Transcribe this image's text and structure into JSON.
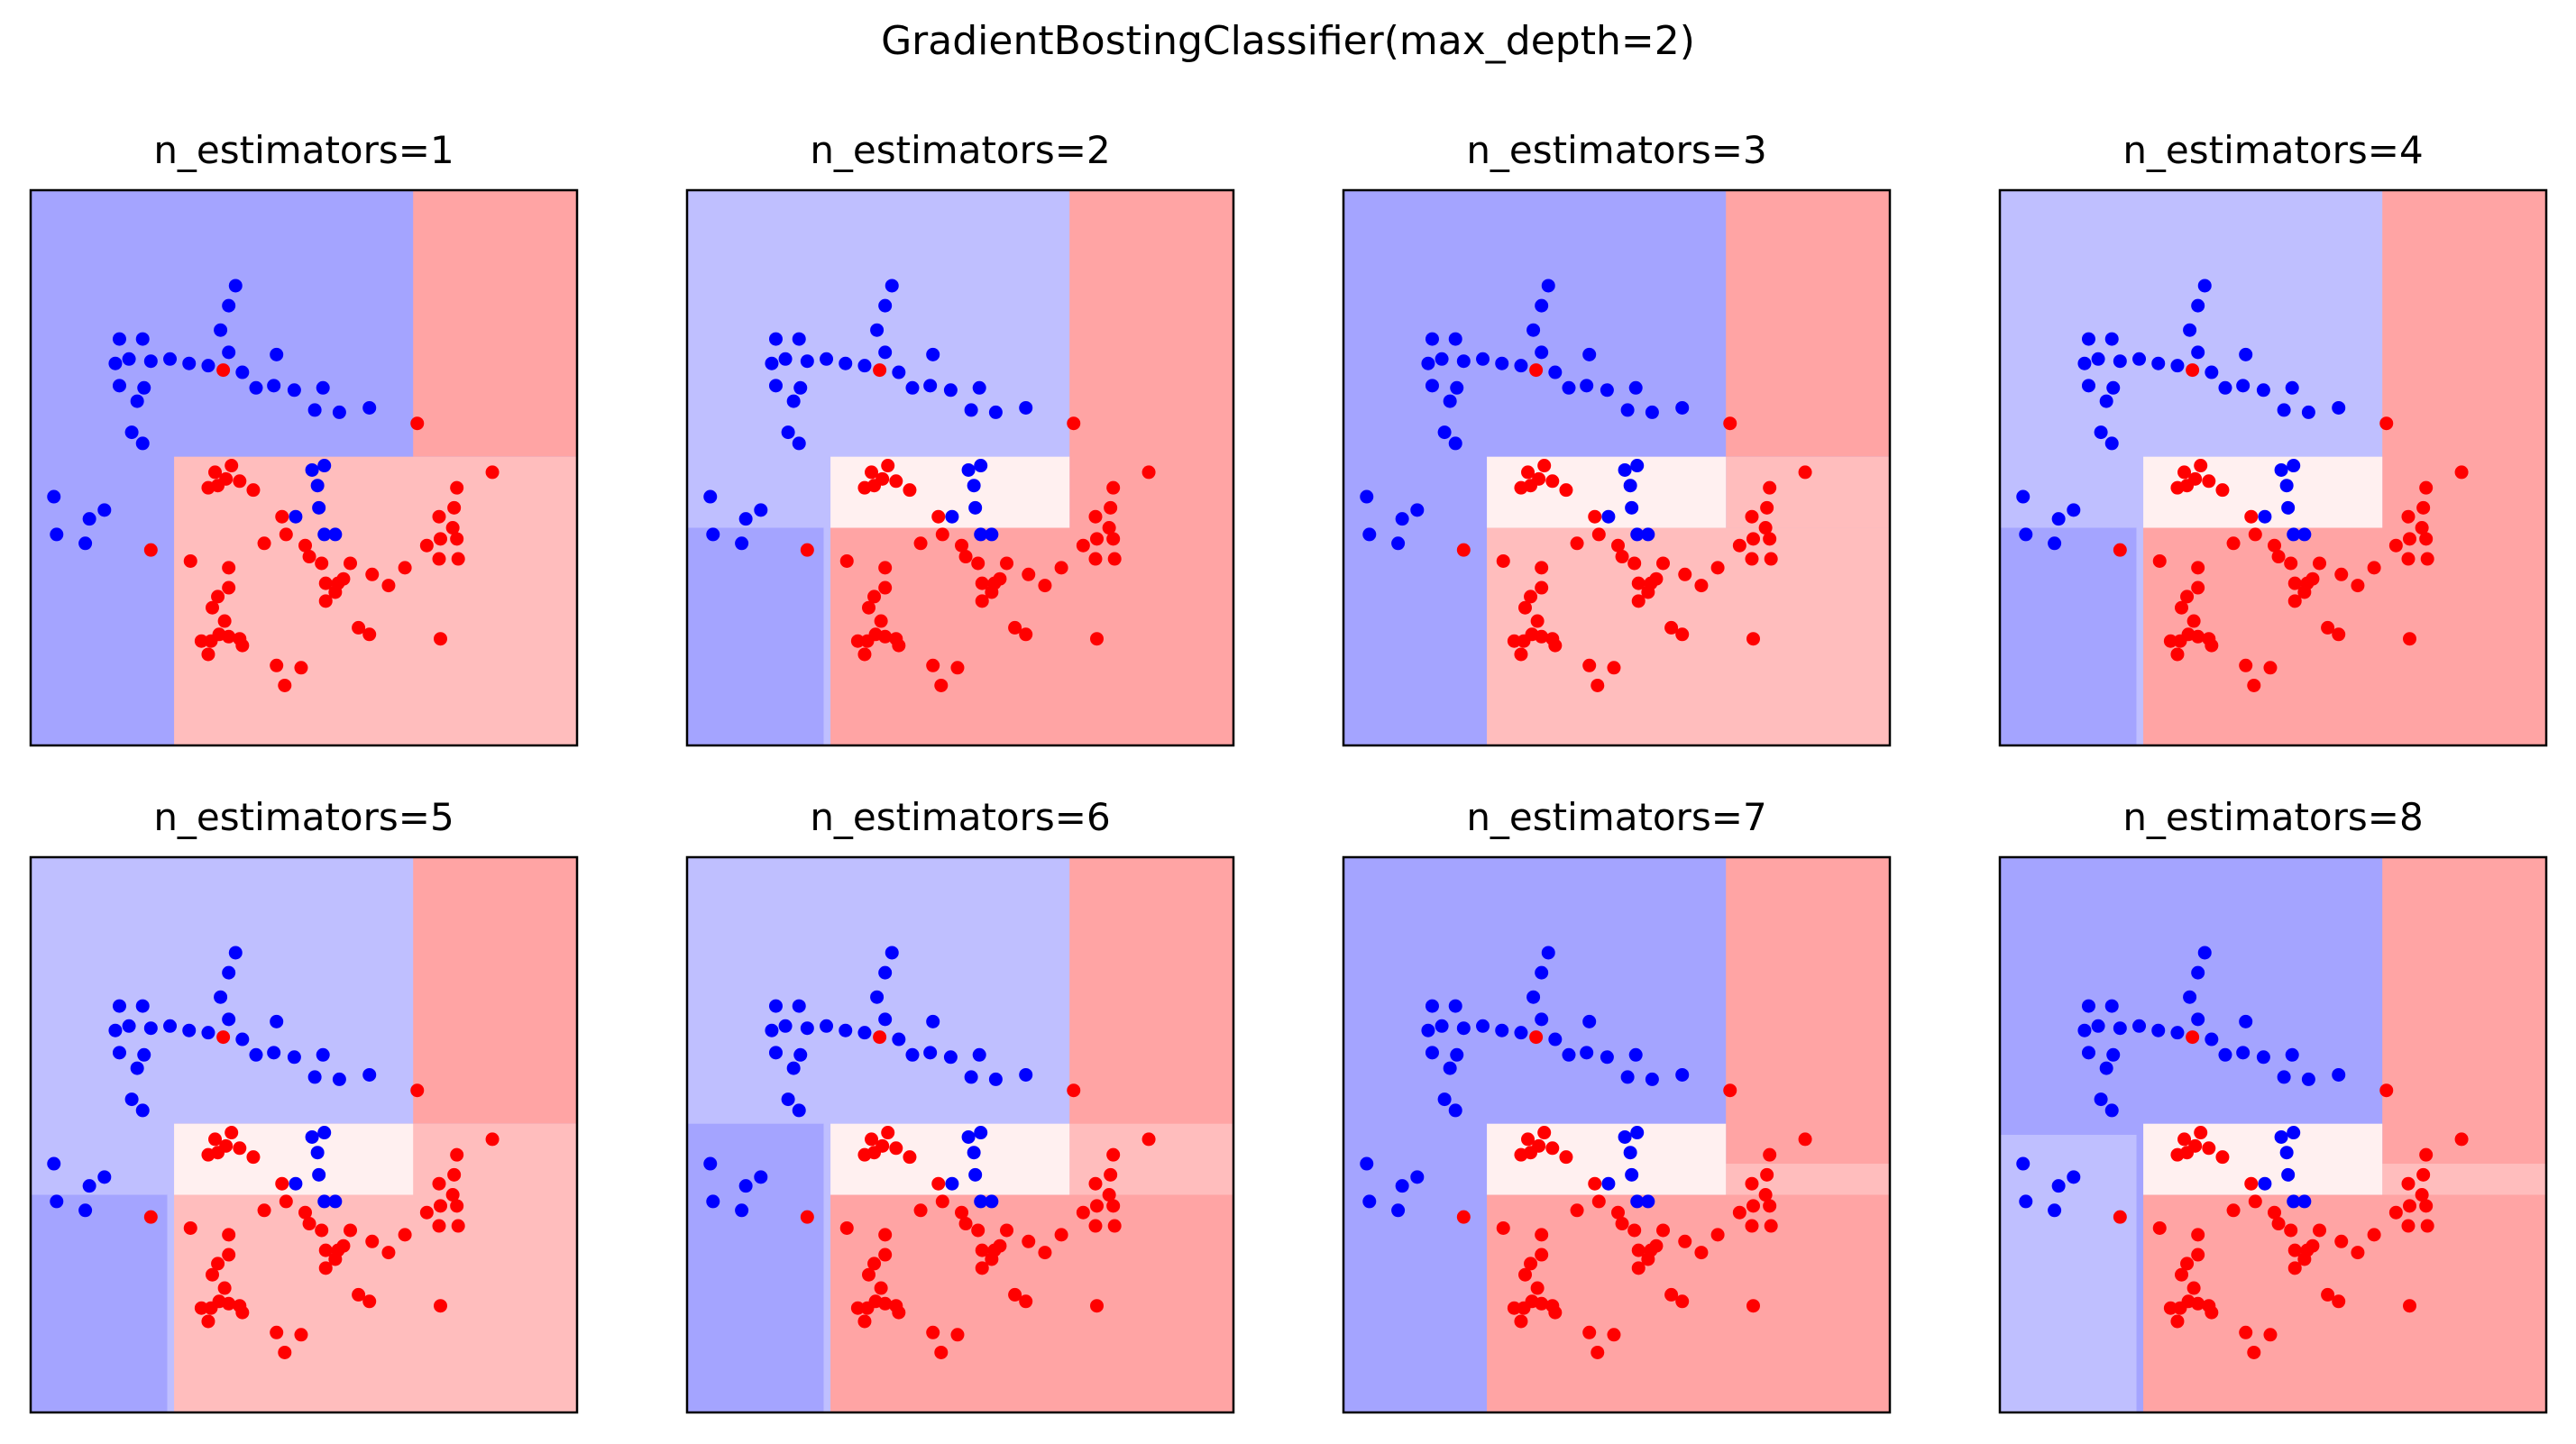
{
  "title": "GradientBostingClassifier(max_depth=2)",
  "colors": {
    "class0": "#0000ff",
    "class1": "#ff0000",
    "blue_strong": "#a4a4ff",
    "blue_light": "#bfbfff",
    "red_strong": "#ffa4a4",
    "red_light": "#ffbdbd",
    "neutral": "#fff0f0",
    "frame": "#000000"
  },
  "chart_data": {
    "type": "scatter",
    "xlim": [
      -1.5,
      2.5
    ],
    "ylim": [
      -1.0,
      1.5
    ],
    "grid": false,
    "points": [
      {
        "x": -0.85,
        "y": 0.83,
        "c": 0
      },
      {
        "x": -0.68,
        "y": 0.83,
        "c": 0
      },
      {
        "x": -0.88,
        "y": 0.72,
        "c": 0
      },
      {
        "x": -0.78,
        "y": 0.74,
        "c": 0
      },
      {
        "x": -0.62,
        "y": 0.73,
        "c": 0
      },
      {
        "x": -0.48,
        "y": 0.74,
        "c": 0
      },
      {
        "x": -0.34,
        "y": 0.72,
        "c": 0
      },
      {
        "x": -0.2,
        "y": 0.71,
        "c": 0
      },
      {
        "x": -0.11,
        "y": 0.87,
        "c": 0
      },
      {
        "x": -0.05,
        "y": 0.98,
        "c": 0
      },
      {
        "x": 0.0,
        "y": 1.07,
        "c": 0
      },
      {
        "x": -0.05,
        "y": 0.77,
        "c": 0
      },
      {
        "x": -0.85,
        "y": 0.62,
        "c": 0
      },
      {
        "x": -0.67,
        "y": 0.61,
        "c": 0
      },
      {
        "x": -0.72,
        "y": 0.55,
        "c": 0
      },
      {
        "x": 0.05,
        "y": 0.68,
        "c": 0
      },
      {
        "x": 0.15,
        "y": 0.61,
        "c": 0
      },
      {
        "x": 0.3,
        "y": 0.76,
        "c": 0
      },
      {
        "x": 0.28,
        "y": 0.62,
        "c": 0
      },
      {
        "x": 0.43,
        "y": 0.6,
        "c": 0
      },
      {
        "x": 0.58,
        "y": 0.51,
        "c": 0
      },
      {
        "x": 0.64,
        "y": 0.61,
        "c": 0
      },
      {
        "x": -0.76,
        "y": 0.41,
        "c": 0
      },
      {
        "x": -0.68,
        "y": 0.36,
        "c": 0
      },
      {
        "x": 0.56,
        "y": 0.24,
        "c": 0
      },
      {
        "x": 0.65,
        "y": 0.26,
        "c": 0
      },
      {
        "x": 0.6,
        "y": 0.17,
        "c": 0
      },
      {
        "x": 0.61,
        "y": 0.07,
        "c": 0
      },
      {
        "x": 0.65,
        "y": -0.05,
        "c": 0
      },
      {
        "x": 0.73,
        "y": -0.05,
        "c": 0
      },
      {
        "x": 0.44,
        "y": 0.03,
        "c": 0
      },
      {
        "x": -1.33,
        "y": 0.12,
        "c": 0
      },
      {
        "x": -1.31,
        "y": -0.05,
        "c": 0
      },
      {
        "x": -1.1,
        "y": -0.09,
        "c": 0
      },
      {
        "x": -1.07,
        "y": 0.02,
        "c": 0
      },
      {
        "x": -0.96,
        "y": 0.06,
        "c": 0
      },
      {
        "x": 0.98,
        "y": 0.52,
        "c": 0
      },
      {
        "x": 0.76,
        "y": 0.5,
        "c": 0
      },
      {
        "x": -0.09,
        "y": 0.69,
        "c": 1
      },
      {
        "x": 1.33,
        "y": 0.45,
        "c": 1
      },
      {
        "x": 1.88,
        "y": 0.23,
        "c": 1
      },
      {
        "x": -0.03,
        "y": 0.26,
        "c": 1
      },
      {
        "x": -0.15,
        "y": 0.23,
        "c": 1
      },
      {
        "x": -0.07,
        "y": 0.2,
        "c": 1
      },
      {
        "x": -0.13,
        "y": 0.17,
        "c": 1
      },
      {
        "x": -0.2,
        "y": 0.16,
        "c": 1
      },
      {
        "x": 0.03,
        "y": 0.19,
        "c": 1
      },
      {
        "x": 0.13,
        "y": 0.15,
        "c": 1
      },
      {
        "x": 1.62,
        "y": 0.16,
        "c": 1
      },
      {
        "x": 1.6,
        "y": 0.07,
        "c": 1
      },
      {
        "x": 1.49,
        "y": 0.03,
        "c": 1
      },
      {
        "x": 1.59,
        "y": -0.02,
        "c": 1
      },
      {
        "x": 1.5,
        "y": -0.07,
        "c": 1
      },
      {
        "x": 1.62,
        "y": -0.07,
        "c": 1
      },
      {
        "x": 1.49,
        "y": -0.16,
        "c": 1
      },
      {
        "x": 1.63,
        "y": -0.16,
        "c": 1
      },
      {
        "x": 1.4,
        "y": -0.1,
        "c": 1
      },
      {
        "x": 0.34,
        "y": 0.03,
        "c": 1
      },
      {
        "x": 0.37,
        "y": -0.05,
        "c": 1
      },
      {
        "x": 0.21,
        "y": -0.09,
        "c": 1
      },
      {
        "x": 0.51,
        "y": -0.1,
        "c": 1
      },
      {
        "x": 0.54,
        "y": -0.15,
        "c": 1
      },
      {
        "x": 0.63,
        "y": -0.18,
        "c": 1
      },
      {
        "x": 0.84,
        "y": -0.18,
        "c": 1
      },
      {
        "x": 1.24,
        "y": -0.2,
        "c": 1
      },
      {
        "x": 0.66,
        "y": -0.27,
        "c": 1
      },
      {
        "x": 0.75,
        "y": -0.27,
        "c": 1
      },
      {
        "x": 0.79,
        "y": -0.25,
        "c": 1
      },
      {
        "x": 0.73,
        "y": -0.31,
        "c": 1
      },
      {
        "x": 0.66,
        "y": -0.35,
        "c": 1
      },
      {
        "x": 1.0,
        "y": -0.23,
        "c": 1
      },
      {
        "x": 1.12,
        "y": -0.28,
        "c": 1
      },
      {
        "x": -0.62,
        "y": -0.12,
        "c": 1
      },
      {
        "x": -0.33,
        "y": -0.17,
        "c": 1
      },
      {
        "x": -0.05,
        "y": -0.2,
        "c": 1
      },
      {
        "x": -0.05,
        "y": -0.29,
        "c": 1
      },
      {
        "x": -0.13,
        "y": -0.33,
        "c": 1
      },
      {
        "x": -0.17,
        "y": -0.38,
        "c": 1
      },
      {
        "x": -0.08,
        "y": -0.44,
        "c": 1
      },
      {
        "x": -0.12,
        "y": -0.5,
        "c": 1
      },
      {
        "x": -0.05,
        "y": -0.51,
        "c": 1
      },
      {
        "x": 0.03,
        "y": -0.52,
        "c": 1
      },
      {
        "x": -0.25,
        "y": -0.53,
        "c": 1
      },
      {
        "x": -0.18,
        "y": -0.53,
        "c": 1
      },
      {
        "x": -0.2,
        "y": -0.59,
        "c": 1
      },
      {
        "x": 0.05,
        "y": -0.55,
        "c": 1
      },
      {
        "x": 0.3,
        "y": -0.64,
        "c": 1
      },
      {
        "x": 0.48,
        "y": -0.65,
        "c": 1
      },
      {
        "x": 0.36,
        "y": -0.73,
        "c": 1
      },
      {
        "x": 1.5,
        "y": -0.52,
        "c": 1
      },
      {
        "x": 0.9,
        "y": -0.47,
        "c": 1
      },
      {
        "x": 0.98,
        "y": -0.5,
        "c": 1
      }
    ],
    "subplots": [
      {
        "title": "n_estimators=1",
        "regions": [
          {
            "x0": -1.5,
            "x1": 2.5,
            "y0": -1.0,
            "y1": 1.5,
            "shade": "blue_strong"
          },
          {
            "x0": 1.3,
            "x1": 2.5,
            "y0": 0.3,
            "y1": 1.5,
            "shade": "red_strong"
          },
          {
            "x0": -0.45,
            "x1": 2.5,
            "y0": -1.0,
            "y1": 0.3,
            "shade": "red_light"
          }
        ]
      },
      {
        "title": "n_estimators=2",
        "regions": [
          {
            "x0": -1.5,
            "x1": 2.5,
            "y0": -1.0,
            "y1": 1.5,
            "shade": "blue_light"
          },
          {
            "x0": -1.5,
            "x1": -0.5,
            "y0": -1.0,
            "y1": -0.02,
            "shade": "blue_strong"
          },
          {
            "x0": 1.3,
            "x1": 2.5,
            "y0": -1.0,
            "y1": 1.5,
            "shade": "red_strong"
          },
          {
            "x0": -0.45,
            "x1": 2.5,
            "y0": -1.0,
            "y1": -0.02,
            "shade": "red_strong"
          },
          {
            "x0": -0.45,
            "x1": 1.3,
            "y0": -0.02,
            "y1": 0.3,
            "shade": "neutral"
          }
        ]
      },
      {
        "title": "n_estimators=3",
        "regions": [
          {
            "x0": -1.5,
            "x1": 2.5,
            "y0": -1.0,
            "y1": 1.5,
            "shade": "blue_strong"
          },
          {
            "x0": 1.3,
            "x1": 2.5,
            "y0": 0.3,
            "y1": 1.5,
            "shade": "red_strong"
          },
          {
            "x0": -0.45,
            "x1": 2.5,
            "y0": -1.0,
            "y1": -0.02,
            "shade": "red_light"
          },
          {
            "x0": 1.3,
            "x1": 2.5,
            "y0": -0.02,
            "y1": 0.3,
            "shade": "red_light"
          },
          {
            "x0": -0.45,
            "x1": 1.3,
            "y0": -0.02,
            "y1": 0.3,
            "shade": "neutral"
          }
        ]
      },
      {
        "title": "n_estimators=4",
        "regions": [
          {
            "x0": -1.5,
            "x1": 2.5,
            "y0": -1.0,
            "y1": 1.5,
            "shade": "blue_light"
          },
          {
            "x0": -1.5,
            "x1": -0.5,
            "y0": -1.0,
            "y1": -0.02,
            "shade": "blue_strong"
          },
          {
            "x0": 1.3,
            "x1": 2.5,
            "y0": -1.0,
            "y1": 1.5,
            "shade": "red_strong"
          },
          {
            "x0": -0.45,
            "x1": 2.5,
            "y0": -1.0,
            "y1": -0.02,
            "shade": "red_strong"
          },
          {
            "x0": -0.45,
            "x1": 1.3,
            "y0": -0.02,
            "y1": 0.3,
            "shade": "neutral"
          }
        ]
      },
      {
        "title": "n_estimators=5",
        "regions": [
          {
            "x0": -1.5,
            "x1": 2.5,
            "y0": -1.0,
            "y1": 1.5,
            "shade": "blue_light"
          },
          {
            "x0": -1.5,
            "x1": -0.5,
            "y0": -1.0,
            "y1": -0.02,
            "shade": "blue_strong"
          },
          {
            "x0": 1.3,
            "x1": 2.5,
            "y0": 0.3,
            "y1": 1.5,
            "shade": "red_strong"
          },
          {
            "x0": -0.45,
            "x1": 2.5,
            "y0": -1.0,
            "y1": 0.3,
            "shade": "red_light"
          },
          {
            "x0": -0.45,
            "x1": 1.3,
            "y0": -0.02,
            "y1": 0.3,
            "shade": "neutral"
          }
        ]
      },
      {
        "title": "n_estimators=6",
        "regions": [
          {
            "x0": -1.5,
            "x1": 2.5,
            "y0": -1.0,
            "y1": 1.5,
            "shade": "blue_light"
          },
          {
            "x0": -1.5,
            "x1": -0.5,
            "y0": -1.0,
            "y1": 0.3,
            "shade": "blue_strong"
          },
          {
            "x0": 1.3,
            "x1": 2.5,
            "y0": -1.0,
            "y1": 1.5,
            "shade": "red_strong"
          },
          {
            "x0": -0.45,
            "x1": 2.5,
            "y0": -1.0,
            "y1": -0.02,
            "shade": "red_strong"
          },
          {
            "x0": 1.3,
            "x1": 2.5,
            "y0": -0.02,
            "y1": 0.3,
            "shade": "red_light"
          },
          {
            "x0": -0.45,
            "x1": 1.3,
            "y0": -0.02,
            "y1": 0.3,
            "shade": "neutral"
          }
        ]
      },
      {
        "title": "n_estimators=7",
        "regions": [
          {
            "x0": -1.5,
            "x1": 2.5,
            "y0": -1.0,
            "y1": 1.5,
            "shade": "blue_strong"
          },
          {
            "x0": 1.3,
            "x1": 2.5,
            "y0": -1.0,
            "y1": 1.5,
            "shade": "red_strong"
          },
          {
            "x0": -0.45,
            "x1": 2.5,
            "y0": -1.0,
            "y1": -0.02,
            "shade": "red_strong"
          },
          {
            "x0": 1.3,
            "x1": 2.5,
            "y0": -0.02,
            "y1": 0.12,
            "shade": "red_light"
          },
          {
            "x0": -0.45,
            "x1": 1.3,
            "y0": -0.02,
            "y1": 0.3,
            "shade": "neutral"
          }
        ]
      },
      {
        "title": "n_estimators=8",
        "regions": [
          {
            "x0": -1.5,
            "x1": 2.5,
            "y0": -1.0,
            "y1": 1.5,
            "shade": "blue_strong"
          },
          {
            "x0": -1.5,
            "x1": -0.5,
            "y0": -1.0,
            "y1": 0.25,
            "shade": "blue_light"
          },
          {
            "x0": 1.3,
            "x1": 2.5,
            "y0": -1.0,
            "y1": 1.5,
            "shade": "red_strong"
          },
          {
            "x0": -0.45,
            "x1": 2.5,
            "y0": -1.0,
            "y1": -0.02,
            "shade": "red_strong"
          },
          {
            "x0": 1.3,
            "x1": 2.5,
            "y0": -0.02,
            "y1": 0.12,
            "shade": "red_light"
          },
          {
            "x0": -0.45,
            "x1": 1.3,
            "y0": -0.02,
            "y1": 0.3,
            "shade": "neutral"
          }
        ]
      }
    ]
  }
}
